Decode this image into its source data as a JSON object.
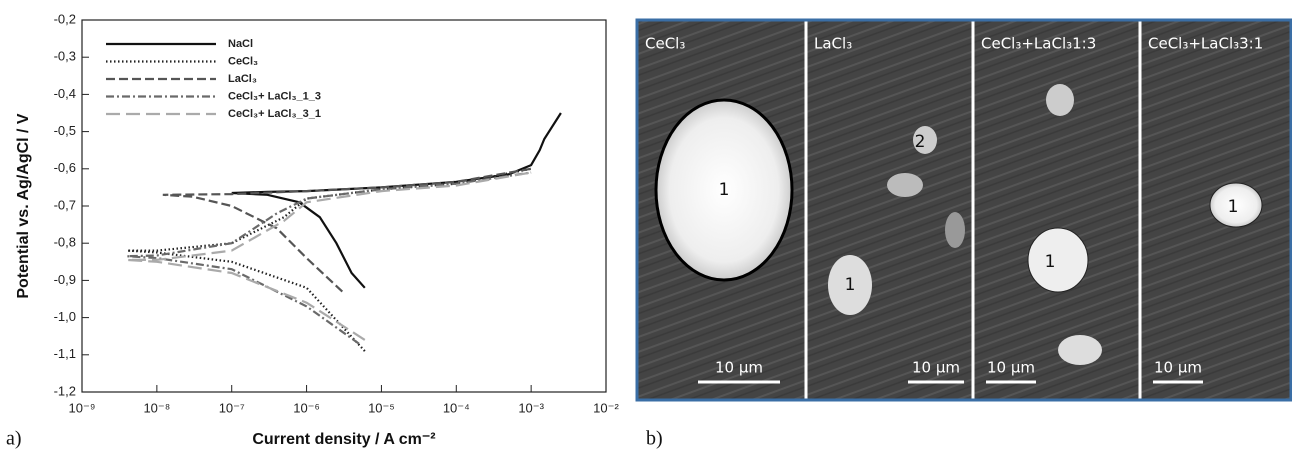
{
  "panel_a": {
    "label": "a)"
  },
  "chart_data": {
    "type": "line",
    "xlabel": "Current density / A cm⁻²",
    "ylabel": "Potential vs. Ag/AgCl / V",
    "xscale": "log",
    "xlim": [
      1e-09,
      0.01
    ],
    "xticks": [
      {
        "value": 1e-09,
        "label": "10⁻⁹"
      },
      {
        "value": 1e-08,
        "label": "10⁻⁸"
      },
      {
        "value": 1e-07,
        "label": "10⁻⁷"
      },
      {
        "value": 1e-06,
        "label": "10⁻⁶"
      },
      {
        "value": 1e-05,
        "label": "10⁻⁵"
      },
      {
        "value": 0.0001,
        "label": "10⁻⁴"
      },
      {
        "value": 0.001,
        "label": "10⁻³"
      },
      {
        "value": 0.01,
        "label": "10⁻²"
      }
    ],
    "ylim": [
      -1.2,
      -0.2
    ],
    "yticks": [
      {
        "value": -0.2,
        "label": "-0,2"
      },
      {
        "value": -0.3,
        "label": "-0,3"
      },
      {
        "value": -0.4,
        "label": "-0,4"
      },
      {
        "value": -0.5,
        "label": "-0,5"
      },
      {
        "value": -0.6,
        "label": "-0,6"
      },
      {
        "value": -0.7,
        "label": "-0,7"
      },
      {
        "value": -0.8,
        "label": "-0,8"
      },
      {
        "value": -0.9,
        "label": "-0,9"
      },
      {
        "value": -1.0,
        "label": "-1,0"
      },
      {
        "value": -1.1,
        "label": "-1,1"
      },
      {
        "value": -1.2,
        "label": "-1,2"
      }
    ],
    "legend": "top-left",
    "series": [
      {
        "name": "NaCl",
        "color": "#111111",
        "dash": "solid",
        "x": [
          6e-06,
          4e-06,
          2.5e-06,
          1.5e-06,
          8e-07,
          3e-07,
          1e-07,
          3e-07,
          1e-06,
          1e-05,
          0.0001,
          0.0005,
          0.001,
          0.0013,
          0.0015,
          0.0025
        ],
        "values": [
          -0.92,
          -0.88,
          -0.8,
          -0.73,
          -0.69,
          -0.67,
          -0.665,
          -0.662,
          -0.66,
          -0.65,
          -0.635,
          -0.615,
          -0.59,
          -0.55,
          -0.52,
          -0.45
        ]
      },
      {
        "name": "CeCl₃",
        "color": "#222222",
        "dash": "dotted",
        "x": [
          6e-06,
          1e-06,
          1e-07,
          1e-08,
          4e-09,
          1e-08,
          1e-07,
          5e-07,
          1e-06,
          1e-05,
          0.0001,
          0.001
        ],
        "values": [
          -1.09,
          -0.92,
          -0.85,
          -0.825,
          -0.82,
          -0.82,
          -0.8,
          -0.73,
          -0.68,
          -0.655,
          -0.64,
          -0.6
        ]
      },
      {
        "name": "LaCl₃",
        "color": "#555555",
        "dash": "dashed",
        "x": [
          3e-06,
          1e-06,
          4e-07,
          1e-07,
          3e-08,
          1.2e-08,
          1e-07,
          1e-06,
          1e-05,
          0.0001,
          0.001
        ],
        "values": [
          -0.93,
          -0.84,
          -0.76,
          -0.7,
          -0.675,
          -0.67,
          -0.668,
          -0.66,
          -0.65,
          -0.635,
          -0.6
        ]
      },
      {
        "name": "CeCl₃+ LaCl₃_1_3",
        "color": "#6a6a6a",
        "dash": "dashdot",
        "x": [
          5e-06,
          1e-06,
          1e-07,
          1e-08,
          4e-09,
          1e-08,
          1e-07,
          4e-07,
          1e-06,
          1e-05,
          0.0001,
          0.001
        ],
        "values": [
          -1.07,
          -0.97,
          -0.87,
          -0.84,
          -0.835,
          -0.833,
          -0.8,
          -0.72,
          -0.68,
          -0.655,
          -0.64,
          -0.61
        ]
      },
      {
        "name": "CeCl₃+ LaCl₃_3_1",
        "color": "#aaaaaa",
        "dash": "longdash",
        "x": [
          6e-06,
          1e-06,
          1e-07,
          1e-08,
          4e-09,
          1e-08,
          1e-07,
          5e-07,
          1e-06,
          1e-05,
          0.0001,
          0.001
        ],
        "values": [
          -1.06,
          -0.96,
          -0.88,
          -0.85,
          -0.845,
          -0.845,
          -0.82,
          -0.74,
          -0.69,
          -0.66,
          -0.645,
          -0.61
        ]
      }
    ]
  },
  "panel_b": {
    "label": "b)",
    "images": [
      {
        "title": "CeCl₃",
        "scale_bar": "10 µm",
        "regions": [
          "1"
        ]
      },
      {
        "title": "LaCl₃",
        "scale_bar": "10 µm",
        "regions": [
          "2",
          "1"
        ]
      },
      {
        "title": "CeCl₃+LaCl₃1:3",
        "scale_bar": "10 µm",
        "regions": [
          "1"
        ]
      },
      {
        "title": "CeCl₃+LaCl₃3:1",
        "scale_bar": "10 µm",
        "regions": [
          "1"
        ]
      }
    ]
  }
}
